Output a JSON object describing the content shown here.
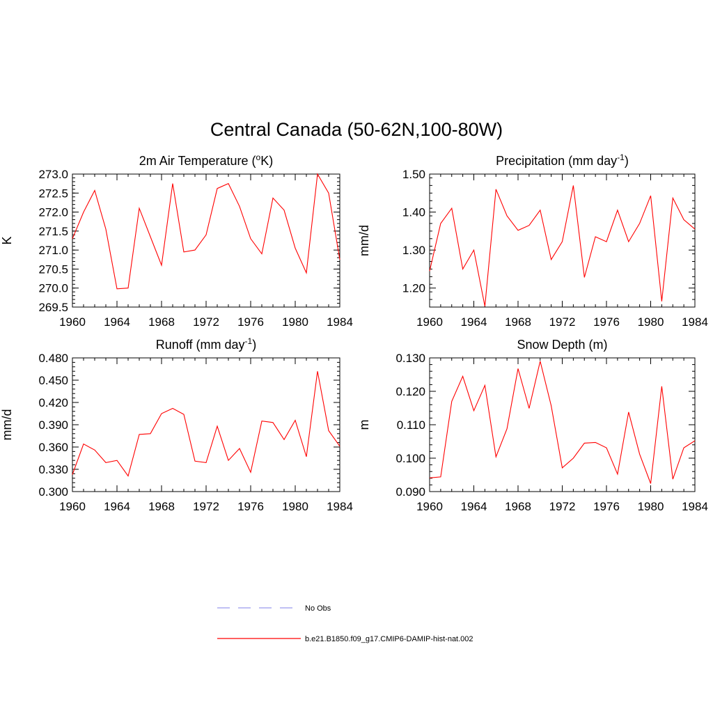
{
  "page": {
    "title": "Central Canada (50-62N,100-80W)"
  },
  "legend": {
    "placement": "bottom-center",
    "entries": [
      {
        "label": "No Obs",
        "color": "#9a9aee",
        "dash": "dashed"
      },
      {
        "label": "b.e21.B1850.f09_g17.CMIP6-DAMIP-hist-nat.002",
        "color": "#ff0000",
        "dash": "solid"
      }
    ]
  },
  "chart_data": [
    {
      "type": "line",
      "title": "2m Air Temperature (",
      "title_sup": "o",
      "title_after": "K)",
      "ylabel": "K",
      "xlim": [
        1960,
        1984
      ],
      "ylim": [
        269.5,
        273.0
      ],
      "xticks": [
        "1960",
        "1964",
        "1968",
        "1972",
        "1976",
        "1980",
        "1984"
      ],
      "yticks": [
        "269.5",
        "270.0",
        "270.5",
        "271.0",
        "271.5",
        "272.0",
        "272.5",
        "273.0"
      ],
      "x": [
        1960,
        1961,
        1962,
        1963,
        1964,
        1965,
        1966,
        1967,
        1968,
        1969,
        1970,
        1971,
        1972,
        1973,
        1974,
        1975,
        1976,
        1977,
        1978,
        1979,
        1980,
        1981,
        1982,
        1983,
        1984
      ],
      "series": [
        {
          "name": "b.e21.B1850.f09_g17.CMIP6-DAMIP-hist-nat.002",
          "color": "#ff0000",
          "values": [
            271.3,
            272.0,
            272.57,
            271.55,
            269.98,
            270.0,
            272.1,
            271.35,
            270.6,
            272.75,
            270.95,
            271.0,
            271.4,
            272.62,
            272.75,
            272.15,
            271.3,
            270.9,
            272.37,
            272.05,
            271.05,
            270.4,
            273.0,
            272.5,
            270.75
          ]
        }
      ]
    },
    {
      "type": "line",
      "title": "Precipitation (mm day",
      "title_sup": "-1",
      "title_after": ")",
      "ylabel": "mm/d",
      "xlim": [
        1960,
        1984
      ],
      "ylim": [
        1.15,
        1.5
      ],
      "xticks": [
        "1960",
        "1964",
        "1968",
        "1972",
        "1976",
        "1980",
        "1984"
      ],
      "yticks": [
        "1.20",
        "1.30",
        "1.40",
        "1.50"
      ],
      "x": [
        1960,
        1961,
        1962,
        1963,
        1964,
        1965,
        1966,
        1967,
        1968,
        1969,
        1970,
        1971,
        1972,
        1973,
        1974,
        1975,
        1976,
        1977,
        1978,
        1979,
        1980,
        1981,
        1982,
        1983,
        1984
      ],
      "series": [
        {
          "name": "b.e21.B1850.f09_g17.CMIP6-DAMIP-hist-nat.002",
          "color": "#ff0000",
          "values": [
            1.245,
            1.37,
            1.41,
            1.25,
            1.3,
            1.152,
            1.46,
            1.39,
            1.352,
            1.365,
            1.405,
            1.275,
            1.322,
            1.47,
            1.228,
            1.335,
            1.322,
            1.405,
            1.322,
            1.37,
            1.443,
            1.165,
            1.437,
            1.38,
            1.355
          ]
        }
      ]
    },
    {
      "type": "line",
      "title": "Runoff (mm day",
      "title_sup": "-1",
      "title_after": ")",
      "ylabel": "mm/d",
      "xlim": [
        1960,
        1984
      ],
      "ylim": [
        0.3,
        0.48
      ],
      "xticks": [
        "1960",
        "1964",
        "1968",
        "1972",
        "1976",
        "1980",
        "1984"
      ],
      "yticks": [
        "0.300",
        "0.330",
        "0.360",
        "0.390",
        "0.420",
        "0.450",
        "0.480"
      ],
      "x": [
        1960,
        1961,
        1962,
        1963,
        1964,
        1965,
        1966,
        1967,
        1968,
        1969,
        1970,
        1971,
        1972,
        1973,
        1974,
        1975,
        1976,
        1977,
        1978,
        1979,
        1980,
        1981,
        1982,
        1983,
        1984
      ],
      "series": [
        {
          "name": "b.e21.B1850.f09_g17.CMIP6-DAMIP-hist-nat.002",
          "color": "#ff0000",
          "values": [
            0.323,
            0.364,
            0.356,
            0.339,
            0.342,
            0.321,
            0.377,
            0.378,
            0.405,
            0.412,
            0.404,
            0.341,
            0.339,
            0.388,
            0.342,
            0.358,
            0.326,
            0.395,
            0.393,
            0.37,
            0.396,
            0.347,
            0.462,
            0.382,
            0.361
          ]
        }
      ]
    },
    {
      "type": "line",
      "title": "Snow Depth (m)",
      "title_sup": "",
      "title_after": "",
      "ylabel": "m",
      "xlim": [
        1960,
        1984
      ],
      "ylim": [
        0.09,
        0.13
      ],
      "xticks": [
        "1960",
        "1964",
        "1968",
        "1972",
        "1976",
        "1980",
        "1984"
      ],
      "yticks": [
        "0.090",
        "0.100",
        "0.110",
        "0.120",
        "0.130"
      ],
      "x": [
        1960,
        1961,
        1962,
        1963,
        1964,
        1965,
        1966,
        1967,
        1968,
        1969,
        1970,
        1971,
        1972,
        1973,
        1974,
        1975,
        1976,
        1977,
        1978,
        1979,
        1980,
        1981,
        1982,
        1983,
        1984
      ],
      "series": [
        {
          "name": "b.e21.B1850.f09_g17.CMIP6-DAMIP-hist-nat.002",
          "color": "#ff0000",
          "values": [
            0.0941,
            0.0944,
            0.117,
            0.1245,
            0.1142,
            0.1218,
            0.1004,
            0.1088,
            0.1268,
            0.1149,
            0.129,
            0.1157,
            0.0971,
            0.1,
            0.1045,
            0.1047,
            0.1031,
            0.0952,
            0.1138,
            0.1012,
            0.0924,
            0.1215,
            0.0937,
            0.1031,
            0.1052
          ]
        }
      ]
    }
  ]
}
